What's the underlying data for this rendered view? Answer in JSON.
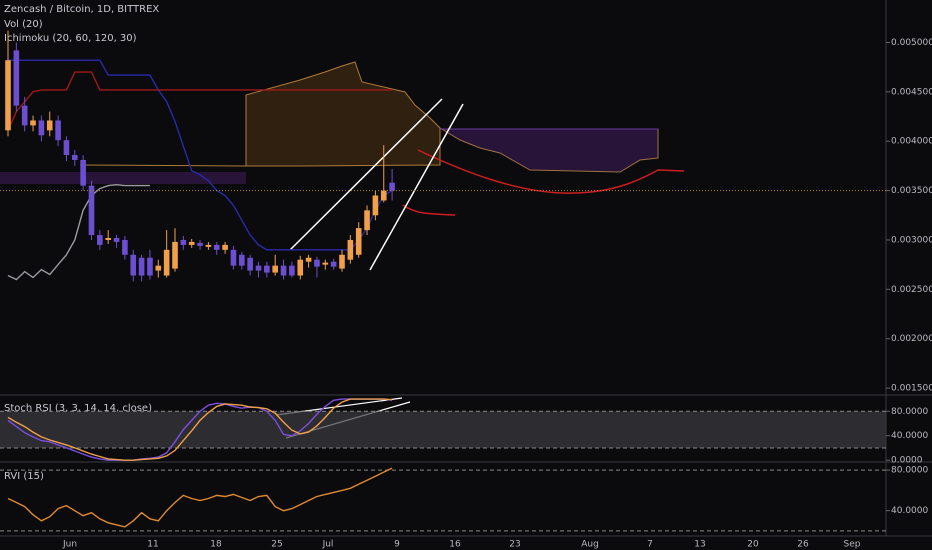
{
  "chart_data": [
    {
      "type": "candlestick",
      "title": "Zencash / Bitcoin, 1D, BITTREX",
      "indicator_labels": [
        "Vol (20)",
        "Ichimoku (20, 60, 120, 30)"
      ],
      "up_color": "#f0a04a",
      "down_color": "#6b4fd0",
      "open": [
        0.00411,
        0.00492,
        0.00436,
        0.00416,
        0.00421,
        0.00411,
        0.00421,
        0.00401,
        0.00386,
        0.00381,
        0.00355,
        0.00305,
        0.003,
        0.00302,
        0.003,
        0.00285,
        0.00282,
        0.00282,
        0.00269,
        0.00264,
        0.00271,
        0.003,
        0.00295,
        0.00297,
        0.00293,
        0.00295,
        0.0029,
        0.0029,
        0.00285,
        0.00282,
        0.00274,
        0.00274,
        0.00267,
        0.00274,
        0.00274,
        0.00264,
        0.00278,
        0.0028,
        0.00275,
        0.00278,
        0.00271,
        0.0028,
        0.00285,
        0.0031,
        0.00325,
        0.0034,
        0.00358
      ],
      "high": [
        0.00512,
        0.005,
        0.00445,
        0.00426,
        0.00426,
        0.0043,
        0.00426,
        0.00405,
        0.00391,
        0.00386,
        0.0036,
        0.0031,
        0.0031,
        0.00305,
        0.00304,
        0.0029,
        0.00285,
        0.0029,
        0.0028,
        0.0031,
        0.00312,
        0.00304,
        0.00301,
        0.003,
        0.00298,
        0.00298,
        0.00298,
        0.00294,
        0.00288,
        0.00285,
        0.00278,
        0.00278,
        0.00285,
        0.0028,
        0.00278,
        0.00284,
        0.00285,
        0.00283,
        0.0028,
        0.00281,
        0.0029,
        0.00305,
        0.00318,
        0.00335,
        0.0035,
        0.00396,
        0.00372
      ],
      "low": [
        0.00405,
        0.0043,
        0.0041,
        0.0041,
        0.004,
        0.00405,
        0.00395,
        0.0038,
        0.00375,
        0.0035,
        0.003,
        0.0029,
        0.00296,
        0.00292,
        0.0028,
        0.00258,
        0.00258,
        0.0026,
        0.00262,
        0.00262,
        0.00268,
        0.0029,
        0.00292,
        0.0029,
        0.0029,
        0.00285,
        0.00286,
        0.0027,
        0.0027,
        0.00264,
        0.00262,
        0.00262,
        0.00264,
        0.0026,
        0.00262,
        0.0026,
        0.00272,
        0.00262,
        0.0027,
        0.0027,
        0.00268,
        0.00276,
        0.00282,
        0.00305,
        0.0032,
        0.00338,
        0.0034
      ],
      "close": [
        0.00482,
        0.00436,
        0.00416,
        0.00421,
        0.00406,
        0.00421,
        0.00401,
        0.00386,
        0.00381,
        0.00355,
        0.00305,
        0.00295,
        0.00302,
        0.00298,
        0.00285,
        0.00264,
        0.00264,
        0.00264,
        0.00274,
        0.0029,
        0.00298,
        0.00295,
        0.00298,
        0.00294,
        0.00295,
        0.0029,
        0.00295,
        0.00274,
        0.00274,
        0.00269,
        0.00269,
        0.00267,
        0.00274,
        0.00264,
        0.00264,
        0.0028,
        0.00282,
        0.00273,
        0.00277,
        0.00273,
        0.00285,
        0.003,
        0.00312,
        0.0033,
        0.00345,
        0.0035,
        0.0035
      ],
      "series": [
        {
          "color": "#2a2aa8",
          "values": [
            0.00482,
            0.00482,
            0.00482,
            0.00482,
            0.00482,
            0.00482,
            0.00482,
            0.00482,
            0.00482,
            0.00482,
            0.00482,
            0.00482,
            0.00467,
            0.00467,
            0.00467,
            0.00467,
            0.00467,
            0.00467,
            0.00452,
            0.0044,
            0.0042,
            0.00395,
            0.0037,
            0.00366,
            0.0036,
            0.0035,
            0.00345,
            0.00335,
            0.0032,
            0.00305,
            0.00295,
            0.0029,
            0.0029,
            0.0029,
            0.0029,
            0.0029,
            0.0029,
            0.0029,
            0.0029,
            0.0029,
            0.0029,
            0.0029,
            0.003,
            0.00312,
            0.0033,
            0.00345,
            0.0035
          ]
        },
        {
          "color": "#a01818",
          "values": [
            0.00411,
            0.0043,
            0.0044,
            0.0045,
            0.00452,
            0.00452,
            0.00452,
            0.00452,
            0.0047,
            0.0047,
            0.0047,
            0.00452,
            0.00452,
            0.00452,
            0.00452,
            0.00452,
            0.00452,
            0.00452,
            0.00452,
            0.00452,
            0.00452,
            0.00452,
            0.00452,
            0.00452,
            0.00452,
            0.00452,
            0.00452,
            0.00452,
            0.00452,
            0.00452,
            0.00452,
            0.00452,
            0.00452,
            0.00452,
            0.00452,
            0.00452,
            0.00452,
            0.00452,
            0.00452,
            0.00452,
            0.00452,
            0.00452,
            0.00452,
            0.00452,
            0.00452,
            0.00452,
            0.00452
          ]
        },
        {
          "color": "#9a9aa0",
          "values": [
            0.00264,
            0.0026,
            0.00268,
            0.00262,
            0.0027,
            0.00265,
            0.00275,
            0.00285,
            0.003,
            0.0033,
            0.00345,
            0.00352,
            0.00355,
            0.00356,
            0.00355,
            0.00355,
            0.00355,
            0.00355,
            null,
            null,
            null,
            null,
            null,
            null,
            null,
            null,
            null,
            null,
            null,
            null,
            null,
            null,
            null,
            null,
            null,
            null,
            null,
            null,
            null,
            null,
            null,
            null,
            null,
            null,
            null,
            null,
            null
          ]
        }
      ],
      "ylim": [
        0.00143,
        0.00543
      ],
      "yticks": [
        {
          "value": 0.005,
          "label": "0.00500000"
        },
        {
          "value": 0.0045,
          "label": "0.00450000"
        },
        {
          "value": 0.004,
          "label": "0.00400000"
        },
        {
          "value": 0.0035,
          "label": "0.00350000"
        },
        {
          "value": 0.003,
          "label": "0.00300000"
        },
        {
          "value": 0.0025,
          "label": "0.00250000"
        },
        {
          "value": 0.002,
          "label": "0.00200000"
        },
        {
          "value": 0.0015,
          "label": "0.00150000"
        }
      ],
      "x_labels": [
        "Jun",
        "11",
        "18",
        "25",
        "Jul",
        "9",
        "16",
        "23",
        "Aug",
        "7",
        "13",
        "20",
        "26",
        "Sep"
      ]
    },
    {
      "type": "line",
      "title": "Stoch RSI (3, 3, 14, 14, close)",
      "series": [
        {
          "color": "#7b4fe0",
          "values": [
            65,
            55,
            45,
            38,
            32,
            30,
            25,
            20,
            15,
            10,
            5,
            2,
            0,
            0,
            0,
            0,
            2,
            3,
            5,
            12,
            30,
            50,
            65,
            80,
            90,
            93,
            92,
            88,
            85,
            87,
            86,
            80,
            65,
            42,
            40,
            48,
            60,
            75,
            88,
            98,
            100,
            100,
            100,
            100,
            100,
            100,
            98
          ]
        },
        {
          "color": "#f0a04a",
          "values": [
            70,
            62,
            55,
            46,
            38,
            33,
            29,
            25,
            20,
            15,
            10,
            6,
            2,
            1,
            0,
            0,
            1,
            2,
            3,
            7,
            16,
            32,
            48,
            65,
            78,
            88,
            92,
            91,
            90,
            87,
            86,
            84,
            77,
            62,
            49,
            43,
            46,
            56,
            70,
            85,
            95,
            100,
            100,
            100,
            100,
            100,
            99
          ]
        }
      ],
      "bands": [
        20,
        80
      ],
      "ylim": [
        -3,
        105
      ],
      "yticks": [
        {
          "value": 80,
          "label": "80.0000"
        },
        {
          "value": 40,
          "label": "40.0000"
        },
        {
          "value": 0,
          "label": "0.0000"
        }
      ]
    },
    {
      "type": "line",
      "title": "RVI (15)",
      "series": [
        {
          "color": "#e08a30",
          "values": [
            52,
            48,
            44,
            36,
            30,
            34,
            42,
            45,
            40,
            35,
            38,
            32,
            28,
            26,
            24,
            30,
            38,
            32,
            30,
            40,
            48,
            55,
            52,
            50,
            52,
            55,
            54,
            56,
            53,
            50,
            54,
            55,
            44,
            40,
            42,
            46,
            50,
            54,
            56,
            58,
            60,
            62,
            66,
            70,
            74,
            78,
            82
          ]
        }
      ],
      "bands": [
        20,
        80
      ],
      "ylim": [
        15,
        87
      ],
      "yticks": [
        {
          "value": 80,
          "label": "80.0000"
        },
        {
          "value": 40,
          "label": "40.0000"
        }
      ]
    }
  ]
}
